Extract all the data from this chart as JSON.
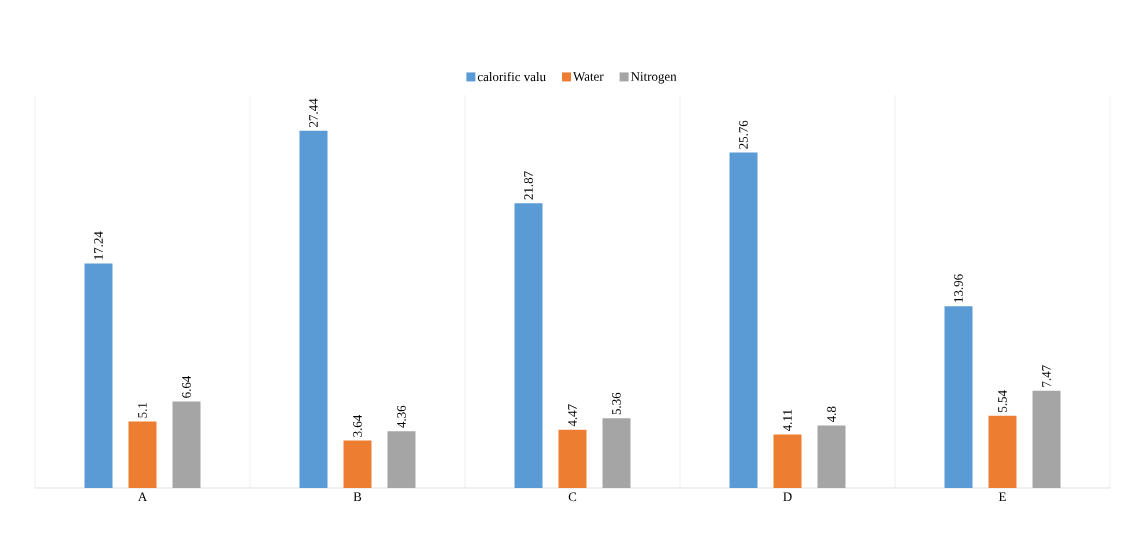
{
  "chart_data": {
    "type": "bar",
    "categories": [
      "A",
      "B",
      "C",
      "D",
      "E"
    ],
    "series": [
      {
        "name": "calorific  valu",
        "color": "#5b9bd5",
        "values": [
          17.24,
          27.44,
          21.87,
          25.76,
          13.96
        ]
      },
      {
        "name": "Water",
        "color": "#ed7d31",
        "values": [
          5.1,
          3.64,
          4.47,
          4.11,
          5.54
        ]
      },
      {
        "name": "Nitrogen",
        "color": "#a5a5a5",
        "values": [
          6.64,
          4.36,
          5.36,
          4.8,
          7.47
        ]
      }
    ],
    "data_labels": true,
    "grid": "x",
    "legend": "top"
  }
}
